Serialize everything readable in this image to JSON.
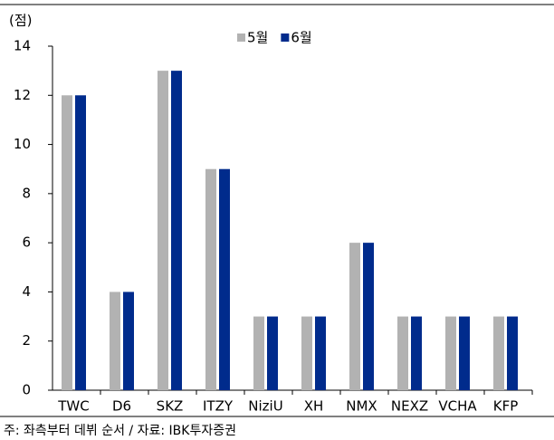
{
  "chart_data": {
    "type": "bar",
    "y_unit": "(점)",
    "categories": [
      "TWC",
      "D6",
      "SKZ",
      "ITZY",
      "NiziU",
      "XH",
      "NMX",
      "NEXZ",
      "VCHA",
      "KFP"
    ],
    "series": [
      {
        "name": "5월",
        "color": "#b2b2b2",
        "values": [
          12,
          4,
          13,
          9,
          3,
          3,
          6,
          3,
          3,
          3
        ]
      },
      {
        "name": "6월",
        "color": "#002b8c",
        "values": [
          12,
          4,
          13,
          9,
          3,
          3,
          6,
          3,
          3,
          3
        ]
      }
    ],
    "ylim": [
      0,
      14
    ],
    "yticks": [
      0,
      2,
      4,
      6,
      8,
      10,
      12,
      14
    ],
    "note": "주: 좌측부터 데뷔 순서 / 자료: IBK투자증권"
  }
}
